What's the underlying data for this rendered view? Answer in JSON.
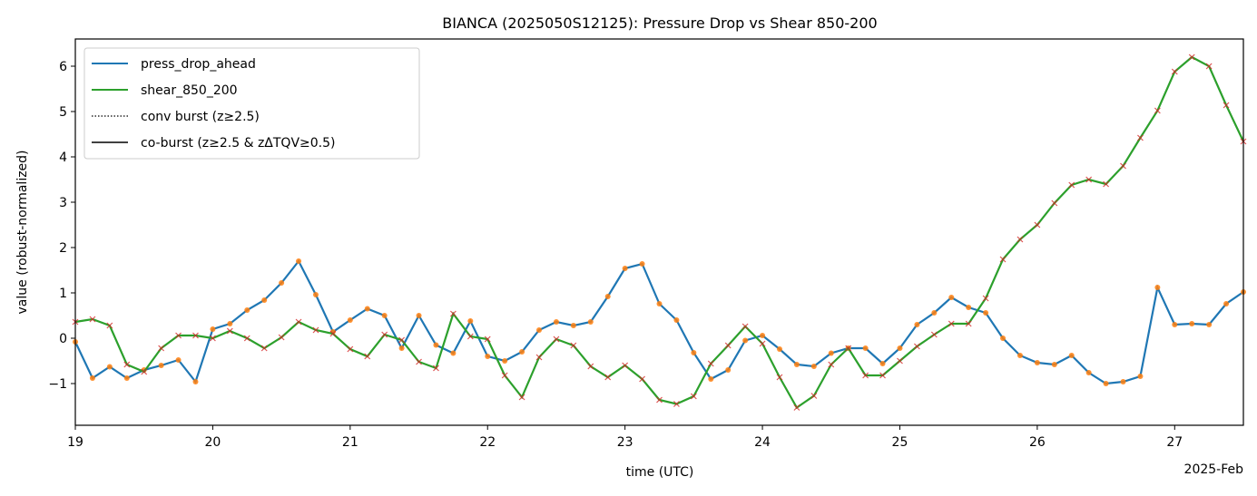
{
  "chart_data": {
    "type": "line",
    "title": "BIANCA (2025050S12125): Pressure Drop vs Shear 850-200",
    "xlabel": "time (UTC)",
    "ylabel": "value (robust-normalized)",
    "x_offset_label": "2025-Feb",
    "xlim": [
      19,
      27.5
    ],
    "ylim": [
      -1.92,
      6.6
    ],
    "x_start_day": 19,
    "x_step_days": 0.125,
    "xticks": [
      19,
      20,
      21,
      22,
      23,
      24,
      25,
      26,
      27
    ],
    "xtick_labels": [
      "19",
      "20",
      "21",
      "22",
      "23",
      "24",
      "25",
      "26",
      "27"
    ],
    "yticks": [
      -1,
      0,
      1,
      2,
      3,
      4,
      5,
      6
    ],
    "ytick_labels": [
      "−1",
      "0",
      "1",
      "2",
      "3",
      "4",
      "5",
      "6"
    ],
    "grid": false,
    "legend_position": "top-left",
    "colors": {
      "press": "#1f77b4",
      "shear": "#2ca02c",
      "press_marker": "#ff7f0e",
      "shear_marker": "#d62728"
    },
    "series": [
      {
        "name": "press_drop_ahead",
        "values": [
          -0.08,
          -0.88,
          -0.63,
          -0.88,
          -0.7,
          -0.6,
          -0.48,
          -0.96,
          0.2,
          0.32,
          0.62,
          0.84,
          1.22,
          1.7,
          0.96,
          0.14,
          0.4,
          0.65,
          0.5,
          -0.22,
          0.5,
          -0.15,
          -0.33,
          0.38,
          -0.4,
          -0.5,
          -0.3,
          0.18,
          0.36,
          0.28,
          0.36,
          0.92,
          1.54,
          1.64,
          0.76,
          0.4,
          -0.32,
          -0.9,
          -0.7,
          -0.05,
          0.06,
          -0.24,
          -0.58,
          -0.62,
          -0.33,
          -0.22,
          -0.22,
          -0.56,
          -0.22,
          0.3,
          0.56,
          0.9,
          0.68,
          0.56,
          0.0,
          -0.38,
          -0.54,
          -0.58,
          -0.38,
          -0.76,
          -1.0,
          -0.96,
          -0.84,
          1.12,
          0.3,
          0.32,
          0.3,
          0.76,
          1.02
        ]
      },
      {
        "name": "shear_850_200",
        "values": [
          0.36,
          0.42,
          0.28,
          -0.58,
          -0.74,
          -0.22,
          0.06,
          0.06,
          0.0,
          0.16,
          0.0,
          -0.22,
          0.02,
          0.36,
          0.18,
          0.1,
          -0.24,
          -0.4,
          0.08,
          -0.04,
          -0.52,
          -0.66,
          0.54,
          0.04,
          -0.02,
          -0.82,
          -1.3,
          -0.42,
          -0.02,
          -0.16,
          -0.62,
          -0.86,
          -0.6,
          -0.9,
          -1.36,
          -1.45,
          -1.28,
          -0.56,
          -0.16,
          0.26,
          -0.12,
          -0.86,
          -1.53,
          -1.27,
          -0.58,
          -0.22,
          -0.82,
          -0.82,
          -0.5,
          -0.18,
          0.08,
          0.32,
          0.32,
          0.88,
          1.74,
          2.18,
          2.5,
          2.98,
          3.38,
          3.5,
          3.4,
          3.8,
          4.42,
          5.02,
          5.88,
          6.2,
          6.0,
          5.14,
          4.34
        ]
      }
    ],
    "legend": [
      "press_drop_ahead",
      "shear_850_200",
      "conv burst (z≥2.5)",
      "co-burst (z≥2.5 & zΔTQV≥0.5)"
    ]
  }
}
